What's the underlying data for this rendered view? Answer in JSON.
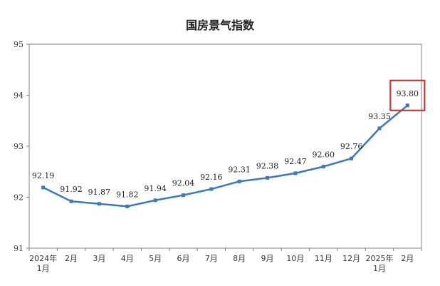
{
  "chart_data": {
    "type": "line",
    "title": "国房景气指数",
    "categories": [
      [
        "2024年",
        "1月"
      ],
      [
        "2月"
      ],
      [
        "3月"
      ],
      [
        "4月"
      ],
      [
        "5月"
      ],
      [
        "6月"
      ],
      [
        "7月"
      ],
      [
        "8月"
      ],
      [
        "9月"
      ],
      [
        "10月"
      ],
      [
        "11月"
      ],
      [
        "12月"
      ],
      [
        "2025年",
        "1月"
      ],
      [
        "2月"
      ]
    ],
    "values": [
      92.19,
      91.92,
      91.87,
      91.82,
      91.94,
      92.04,
      92.16,
      92.31,
      92.38,
      92.47,
      92.6,
      92.76,
      93.35,
      93.8
    ],
    "value_labels": [
      "92.19",
      "91.92",
      "91.87",
      "91.82",
      "91.94",
      "92.04",
      "92.16",
      "92.31",
      "92.38",
      "92.47",
      "92.60",
      "92.76",
      "93.35",
      "93.80"
    ],
    "ylim": [
      91,
      95
    ],
    "yticks": [
      "91",
      "92",
      "93",
      "94",
      "95"
    ],
    "xlabel": "",
    "ylabel": "",
    "grid": false,
    "highlight_index": 13,
    "colors": {
      "line": "#3a78c0",
      "highlight_box": "#d9312b",
      "axis": "#7f7f7f"
    }
  }
}
